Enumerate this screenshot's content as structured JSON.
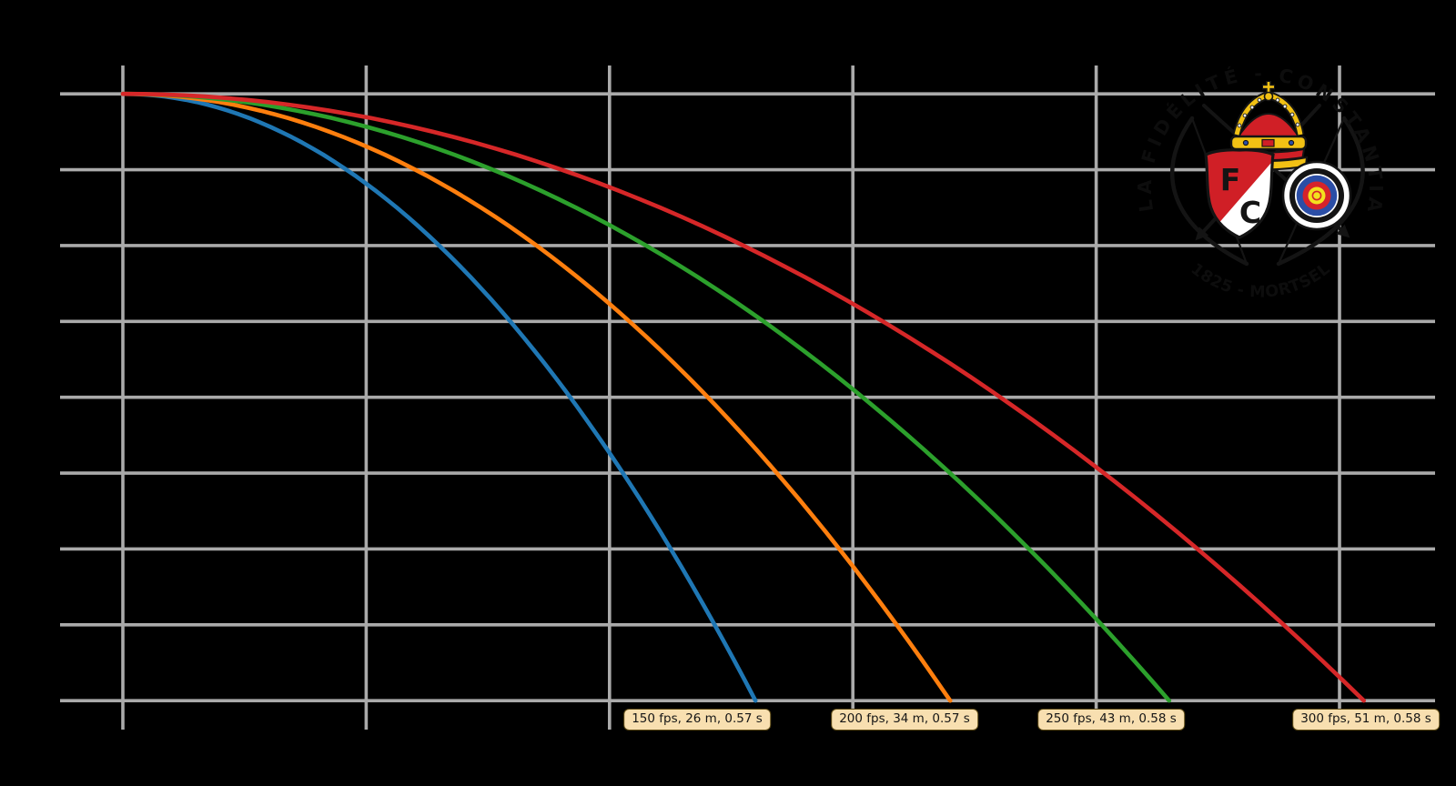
{
  "figure": {
    "background": "#000000"
  },
  "chart_data": {
    "type": "line",
    "description": "Arrow trajectory: height (m) vs distance (m) for four arrow speeds",
    "title": "",
    "xlabel": "",
    "ylabel": "",
    "x_unit": "m",
    "y_unit": "m",
    "grid": true,
    "grid_color": "#aaaaaa",
    "legend_position": "none",
    "launch_height_m_est": 1.6,
    "x_gridlines_m": [
      0,
      10,
      20,
      30,
      40,
      50
    ],
    "y_gridlines_m": [
      0,
      0.2,
      0.4,
      0.6,
      0.8,
      1.0,
      1.2,
      1.4,
      1.6
    ],
    "xlim_m": [
      -2.6,
      53.9
    ],
    "ylim_m": [
      -0.08,
      1.68
    ],
    "series": [
      {
        "name": "150 fps",
        "color": "#1f77b4",
        "speed_fps": 150,
        "range_m": 26,
        "flight_time_s": 0.57,
        "annotation": "150 fps, 26 m, 0.57 s"
      },
      {
        "name": "200 fps",
        "color": "#ff7f0e",
        "speed_fps": 200,
        "range_m": 34,
        "flight_time_s": 0.57,
        "annotation": "200 fps, 34 m, 0.57 s"
      },
      {
        "name": "250 fps",
        "color": "#2ca02c",
        "speed_fps": 250,
        "range_m": 43,
        "flight_time_s": 0.58,
        "annotation": "250 fps, 43 m, 0.58 s"
      },
      {
        "name": "300 fps",
        "color": "#d62728",
        "speed_fps": 300,
        "range_m": 51,
        "flight_time_s": 0.58,
        "annotation": "300 fps, 51 m, 0.58 s"
      }
    ]
  },
  "annotation_style": {
    "fill": "#f8dfb0",
    "border_color": "#5f4c17",
    "text_color": "#161616"
  },
  "logo": {
    "top_text": "LA FIDÉLITÉ - CONSTANTIA",
    "bottom_text": "1825 - MORTSEL",
    "shield_letter_f": "F",
    "shield_letter_c": "C",
    "colors": {
      "red": "#d01f26",
      "gold": "#f2c114",
      "blue": "#2b4ea6",
      "yellow": "#f3e11e",
      "black": "#141414",
      "white": "#ffffff"
    }
  }
}
